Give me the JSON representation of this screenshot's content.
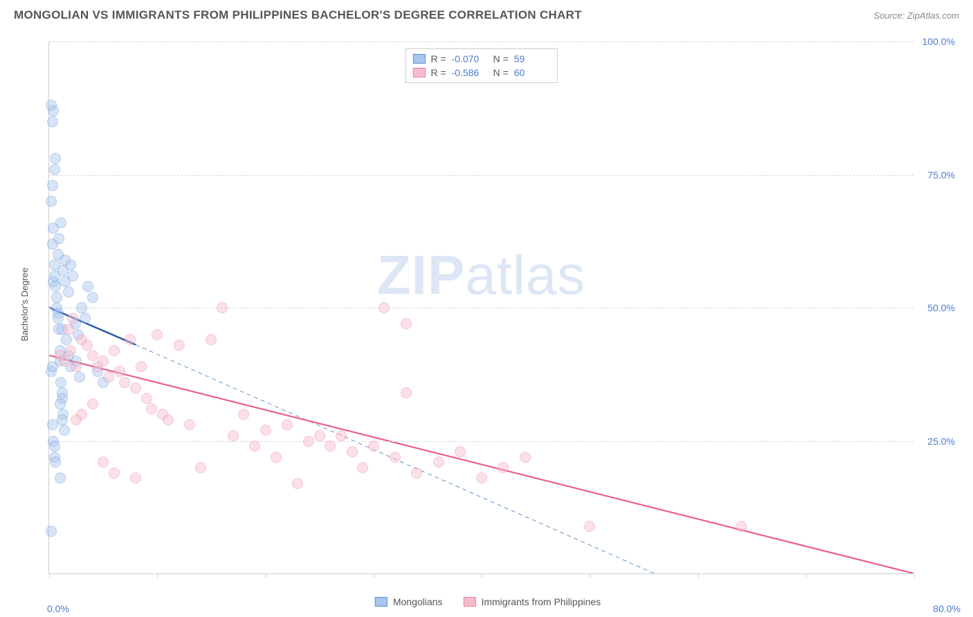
{
  "header": {
    "title": "MONGOLIAN VS IMMIGRANTS FROM PHILIPPINES BACHELOR'S DEGREE CORRELATION CHART",
    "source_prefix": "Source: ",
    "source_name": "ZipAtlas.com"
  },
  "watermark": {
    "zip": "ZIP",
    "atlas": "atlas"
  },
  "chart": {
    "type": "scatter",
    "background_color": "#ffffff",
    "grid_color": "#d8d8d8",
    "axis_color": "#cccccc",
    "text_color": "#555555",
    "value_color": "#4a7bd0",
    "y_axis_title": "Bachelor's Degree",
    "xlim": [
      0,
      80
    ],
    "ylim": [
      0,
      100
    ],
    "x_ticks": [
      0,
      10,
      20,
      30,
      40,
      50,
      60,
      70,
      80
    ],
    "x_tick_labels_shown": {
      "first": "0.0%",
      "last": "80.0%"
    },
    "y_grid": [
      25,
      50,
      75,
      100
    ],
    "y_labels": [
      "25.0%",
      "50.0%",
      "75.0%",
      "100.0%"
    ],
    "axis_label_fontsize": 14,
    "title_fontsize": 17,
    "point_radius": 8,
    "point_opacity": 0.45,
    "point_stroke_width": 1.2,
    "series": [
      {
        "id": "mongolians",
        "name": "Mongolians",
        "fill": "#a9c6ef",
        "stroke": "#5b8fd6",
        "stats": {
          "R": "-0.070",
          "N": "59"
        },
        "trend": {
          "solid": {
            "x1": 0,
            "y1": 50,
            "x2": 8,
            "y2": 43,
            "color": "#2e5aa8",
            "width": 2.5
          },
          "dashed": {
            "x1": 8,
            "y1": 43,
            "x2": 56,
            "y2": 0,
            "color": "#7ba0d9",
            "width": 1.2,
            "dash": "6,5"
          }
        },
        "points": [
          [
            0.2,
            38
          ],
          [
            0.3,
            39
          ],
          [
            0.4,
            55
          ],
          [
            0.5,
            58
          ],
          [
            0.5,
            56
          ],
          [
            0.6,
            54
          ],
          [
            0.7,
            52
          ],
          [
            0.7,
            50
          ],
          [
            0.8,
            49
          ],
          [
            0.8,
            48
          ],
          [
            0.8,
            60
          ],
          [
            0.9,
            46
          ],
          [
            1.0,
            42
          ],
          [
            1.0,
            40
          ],
          [
            1.1,
            36
          ],
          [
            1.2,
            34
          ],
          [
            1.2,
            33
          ],
          [
            1.3,
            30
          ],
          [
            0.3,
            28
          ],
          [
            0.4,
            25
          ],
          [
            0.5,
            24
          ],
          [
            0.5,
            22
          ],
          [
            0.6,
            21
          ],
          [
            0.3,
            62
          ],
          [
            0.4,
            65
          ],
          [
            0.2,
            70
          ],
          [
            0.3,
            73
          ],
          [
            0.5,
            76
          ],
          [
            0.6,
            78
          ],
          [
            0.3,
            85
          ],
          [
            0.4,
            87
          ],
          [
            0.2,
            88
          ],
          [
            1.5,
            55
          ],
          [
            1.8,
            53
          ],
          [
            2.0,
            58
          ],
          [
            2.2,
            56
          ],
          [
            2.5,
            40
          ],
          [
            2.8,
            37
          ],
          [
            3.0,
            50
          ],
          [
            3.3,
            48
          ],
          [
            3.6,
            54
          ],
          [
            4.0,
            52
          ],
          [
            4.5,
            38
          ],
          [
            5.0,
            36
          ],
          [
            1.0,
            18
          ],
          [
            1.2,
            29
          ],
          [
            1.4,
            27
          ],
          [
            0.2,
            8
          ],
          [
            1.6,
            44
          ],
          [
            1.8,
            41
          ],
          [
            2.0,
            39
          ],
          [
            2.4,
            47
          ],
          [
            2.7,
            45
          ],
          [
            1.3,
            57
          ],
          [
            1.5,
            59
          ],
          [
            0.9,
            63
          ],
          [
            1.1,
            66
          ],
          [
            1.0,
            32
          ],
          [
            1.2,
            46
          ]
        ]
      },
      {
        "id": "philippines",
        "name": "Immigrants from Philippines",
        "fill": "#f7bccb",
        "stroke": "#ea7da0",
        "stats": {
          "R": "-0.586",
          "N": "60"
        },
        "trend": {
          "solid": {
            "x1": 0,
            "y1": 41,
            "x2": 80,
            "y2": 0,
            "color": "#ea5e8b",
            "width": 2.2
          },
          "dashed": null
        },
        "points": [
          [
            1.0,
            41
          ],
          [
            1.5,
            40
          ],
          [
            2.0,
            42
          ],
          [
            2.5,
            39
          ],
          [
            3.0,
            44
          ],
          [
            3.5,
            43
          ],
          [
            4.0,
            41
          ],
          [
            4.5,
            39
          ],
          [
            5.0,
            40
          ],
          [
            5.5,
            37
          ],
          [
            6.0,
            42
          ],
          [
            6.5,
            38
          ],
          [
            7.0,
            36
          ],
          [
            7.5,
            44
          ],
          [
            8.0,
            35
          ],
          [
            8.5,
            39
          ],
          [
            9.0,
            33
          ],
          [
            9.5,
            31
          ],
          [
            10.0,
            45
          ],
          [
            10.5,
            30
          ],
          [
            5.0,
            21
          ],
          [
            6.0,
            19
          ],
          [
            8.0,
            18
          ],
          [
            11.0,
            29
          ],
          [
            12.0,
            43
          ],
          [
            13.0,
            28
          ],
          [
            14.0,
            20
          ],
          [
            15.0,
            44
          ],
          [
            16.0,
            50
          ],
          [
            17.0,
            26
          ],
          [
            18.0,
            30
          ],
          [
            19.0,
            24
          ],
          [
            20.0,
            27
          ],
          [
            21.0,
            22
          ],
          [
            22.0,
            28
          ],
          [
            23.0,
            17
          ],
          [
            24.0,
            25
          ],
          [
            25.0,
            26
          ],
          [
            26.0,
            24
          ],
          [
            27.0,
            26
          ],
          [
            28.0,
            23
          ],
          [
            29.0,
            20
          ],
          [
            30.0,
            24
          ],
          [
            31.0,
            50
          ],
          [
            32.0,
            22
          ],
          [
            33.0,
            47
          ],
          [
            34.0,
            19
          ],
          [
            36.0,
            21
          ],
          [
            38.0,
            23
          ],
          [
            40.0,
            18
          ],
          [
            42.0,
            20
          ],
          [
            44.0,
            22
          ],
          [
            33.0,
            34
          ],
          [
            50.0,
            9
          ],
          [
            64.0,
            9
          ],
          [
            3.0,
            30
          ],
          [
            4.0,
            32
          ],
          [
            2.5,
            29
          ],
          [
            1.8,
            46
          ],
          [
            2.2,
            48
          ]
        ]
      }
    ],
    "bottom_legend": [
      {
        "label": "Mongolians",
        "fill": "#a9c6ef",
        "stroke": "#5b8fd6"
      },
      {
        "label": "Immigrants from Philippines",
        "fill": "#f7bccb",
        "stroke": "#ea7da0"
      }
    ],
    "stats_box_labels": {
      "R": "R =",
      "N": "N ="
    }
  }
}
